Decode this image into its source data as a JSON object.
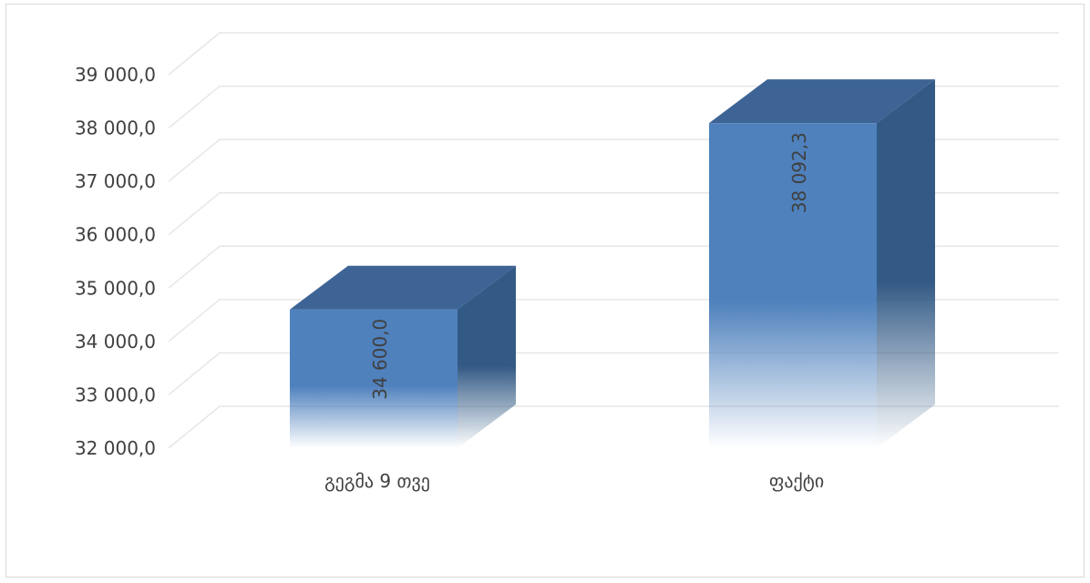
{
  "chart_data": {
    "type": "bar",
    "style": "3d-column",
    "categories": [
      "გეგმა 9 თვე",
      "ფაქტი"
    ],
    "values": [
      34600.0,
      38092.3
    ],
    "data_labels": [
      "34 600,0",
      "38 092,3"
    ],
    "yticks": [
      32000,
      33000,
      34000,
      35000,
      36000,
      37000,
      38000,
      39000
    ],
    "ytick_labels": [
      "32 000,0",
      "33 000,0",
      "34 000,0",
      "35 000,0",
      "36 000,0",
      "37 000,0",
      "38 000,0",
      "39 000,0"
    ],
    "ylim": [
      32000,
      39000
    ],
    "grid": true,
    "title": "",
    "xlabel": "",
    "ylabel": "",
    "colors": {
      "front": "#4f81bd",
      "top": "#3d6494",
      "side": "#335a85",
      "grid": "#e6e6e6",
      "text": "#404040"
    }
  }
}
